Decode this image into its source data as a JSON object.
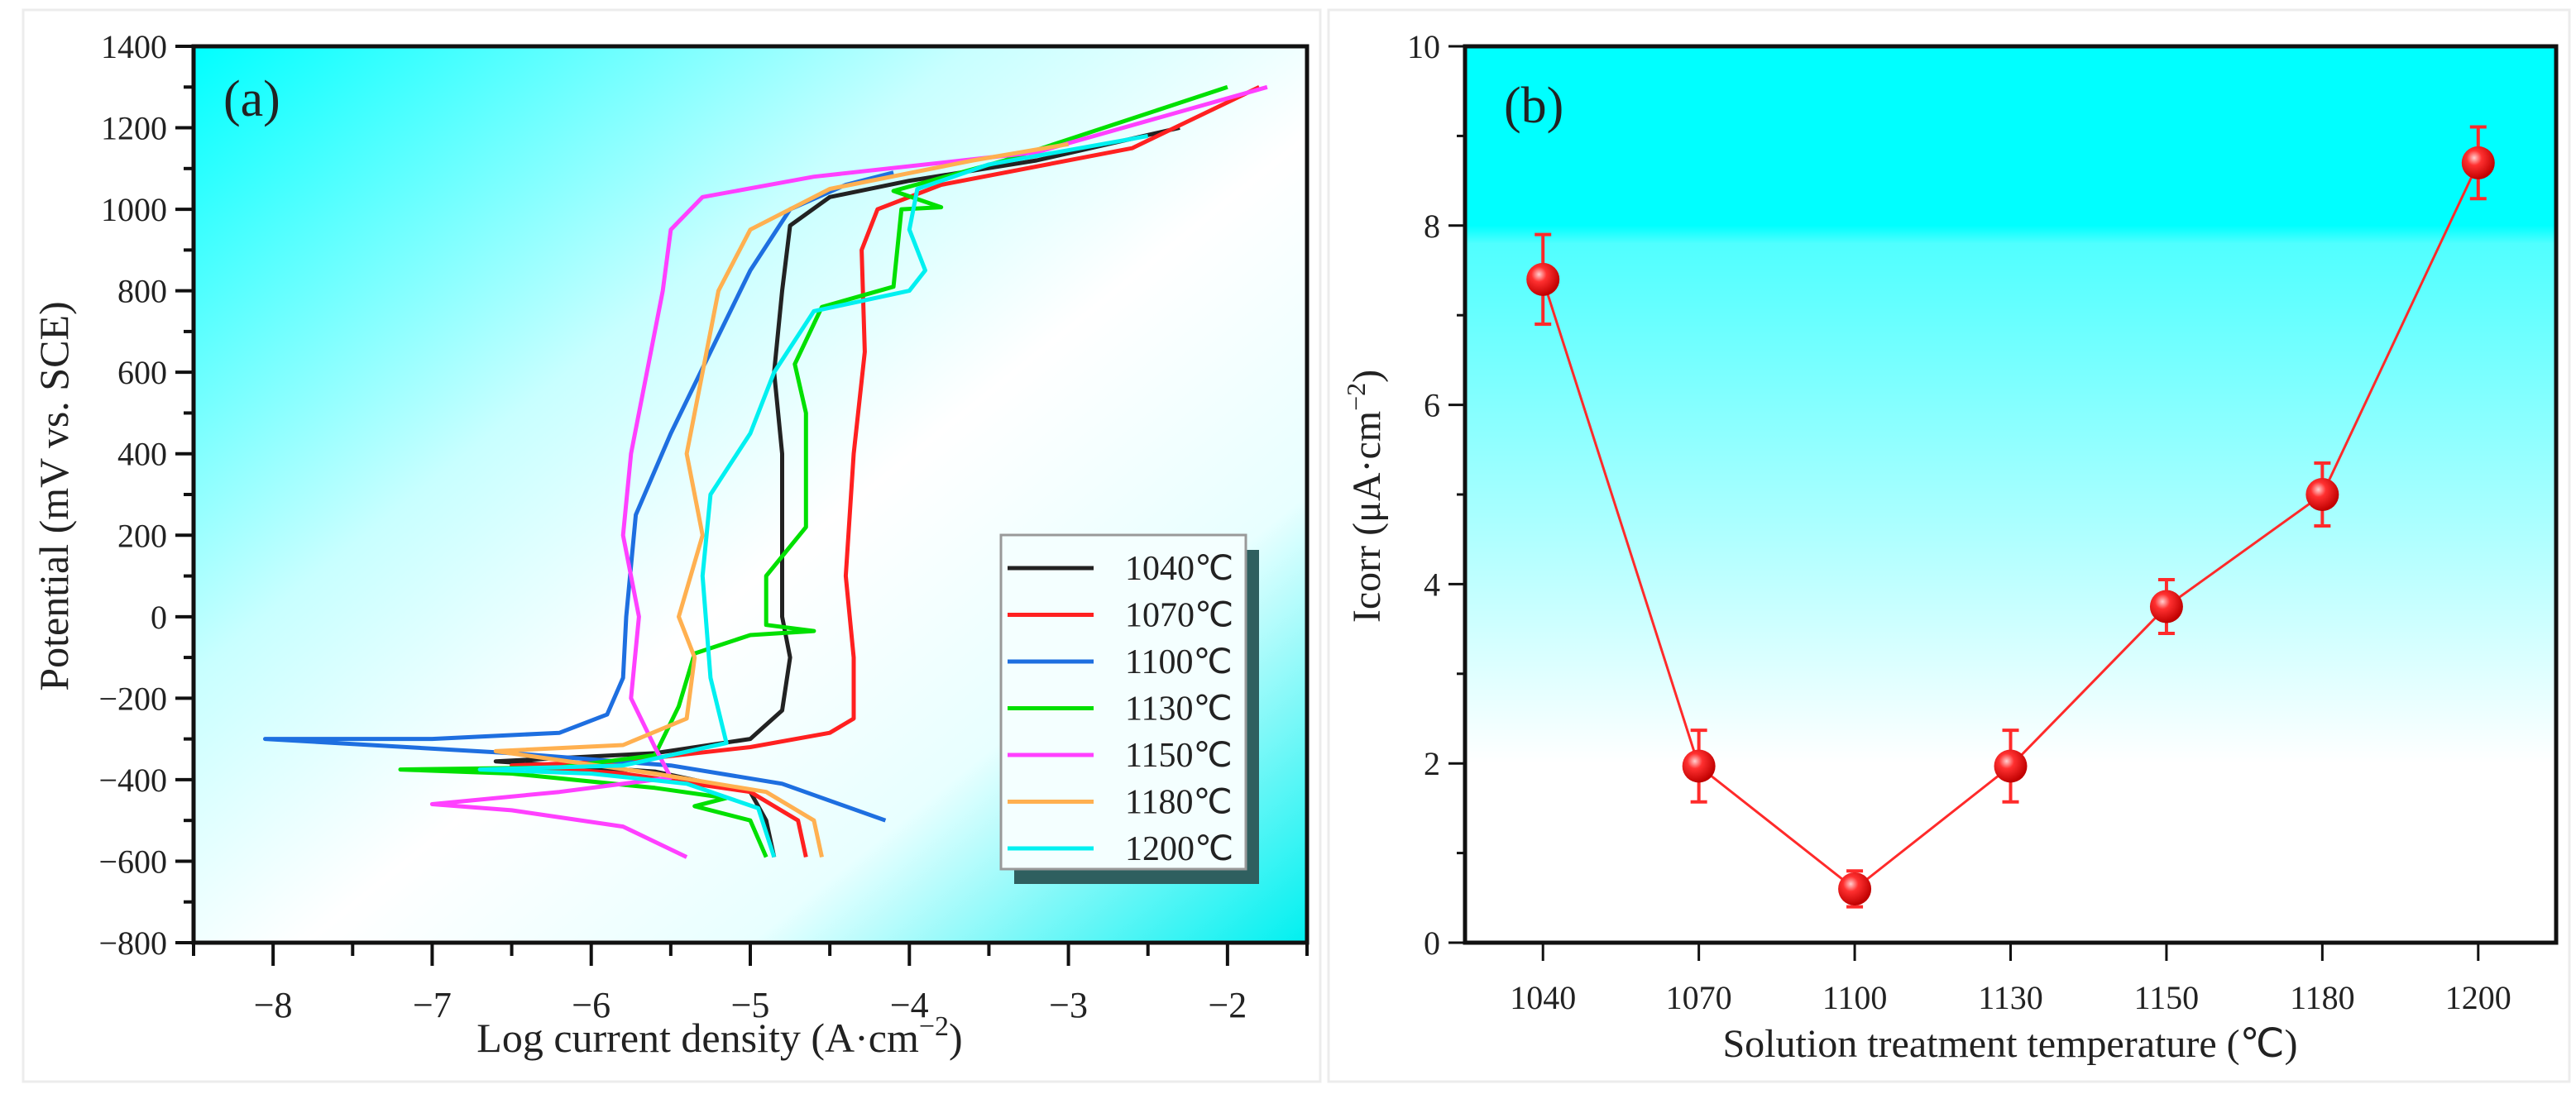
{
  "chart_data": [
    {
      "type": "line",
      "panel_label": "(a)",
      "xlabel": "Log current density (A·cm",
      "xlabel_sup": "−2",
      "xlabel_end": ")",
      "ylabel": "Potential (mV vs. SCE)",
      "xlim": [
        -8.5,
        -1.5
      ],
      "ylim": [
        -800,
        1400
      ],
      "xticks": [
        -8,
        -7,
        -6,
        -5,
        -4,
        -3,
        -2
      ],
      "yticks": [
        -800,
        -600,
        -400,
        -200,
        0,
        200,
        400,
        600,
        800,
        1000,
        1200,
        1400
      ],
      "legend_position": "bottom-right",
      "series": [
        {
          "name": "1040℃",
          "color": "#222222",
          "points": [
            [
              -4.85,
              -590
            ],
            [
              -4.9,
              -500
            ],
            [
              -5.0,
              -430
            ],
            [
              -5.6,
              -380
            ],
            [
              -6.6,
              -355
            ],
            [
              -5.6,
              -335
            ],
            [
              -5.0,
              -300
            ],
            [
              -4.8,
              -230
            ],
            [
              -4.75,
              -100
            ],
            [
              -4.8,
              0
            ],
            [
              -4.8,
              200
            ],
            [
              -4.8,
              400
            ],
            [
              -4.85,
              600
            ],
            [
              -4.8,
              800
            ],
            [
              -4.75,
              960
            ],
            [
              -4.5,
              1030
            ],
            [
              -4.0,
              1070
            ],
            [
              -3.2,
              1120
            ],
            [
              -2.3,
              1200
            ]
          ]
        },
        {
          "name": "1070℃",
          "color": "#ff2020",
          "points": [
            [
              -4.65,
              -590
            ],
            [
              -4.7,
              -500
            ],
            [
              -5.0,
              -430
            ],
            [
              -5.8,
              -385
            ],
            [
              -6.5,
              -365
            ],
            [
              -5.8,
              -355
            ],
            [
              -5.0,
              -320
            ],
            [
              -4.5,
              -285
            ],
            [
              -4.35,
              -250
            ],
            [
              -4.35,
              -100
            ],
            [
              -4.4,
              100
            ],
            [
              -4.35,
              400
            ],
            [
              -4.28,
              650
            ],
            [
              -4.3,
              900
            ],
            [
              -4.2,
              1000
            ],
            [
              -3.8,
              1060
            ],
            [
              -2.6,
              1150
            ],
            [
              -1.8,
              1300
            ]
          ]
        },
        {
          "name": "1100℃",
          "color": "#1e6fe0",
          "points": [
            [
              -4.15,
              -500
            ],
            [
              -4.8,
              -410
            ],
            [
              -5.5,
              -365
            ],
            [
              -6.5,
              -335
            ],
            [
              -8.05,
              -300
            ],
            [
              -7.0,
              -300
            ],
            [
              -6.2,
              -285
            ],
            [
              -5.9,
              -240
            ],
            [
              -5.8,
              -150
            ],
            [
              -5.78,
              0
            ],
            [
              -5.72,
              250
            ],
            [
              -5.5,
              450
            ],
            [
              -5.25,
              650
            ],
            [
              -5.0,
              850
            ],
            [
              -4.75,
              1000
            ],
            [
              -4.4,
              1060
            ],
            [
              -4.1,
              1090
            ]
          ]
        },
        {
          "name": "1130℃",
          "color": "#00e000",
          "points": [
            [
              -4.9,
              -590
            ],
            [
              -5.0,
              -500
            ],
            [
              -5.35,
              -465
            ],
            [
              -5.15,
              -445
            ],
            [
              -5.6,
              -420
            ],
            [
              -6.5,
              -385
            ],
            [
              -7.2,
              -375
            ],
            [
              -6.2,
              -370
            ],
            [
              -5.6,
              -340
            ],
            [
              -5.45,
              -220
            ],
            [
              -5.35,
              -90
            ],
            [
              -5.0,
              -45
            ],
            [
              -4.6,
              -35
            ],
            [
              -4.9,
              -20
            ],
            [
              -4.9,
              100
            ],
            [
              -4.65,
              220
            ],
            [
              -4.65,
              500
            ],
            [
              -4.72,
              620
            ],
            [
              -4.55,
              760
            ],
            [
              -4.1,
              810
            ],
            [
              -4.05,
              1000
            ],
            [
              -3.8,
              1005
            ],
            [
              -4.1,
              1045
            ],
            [
              -3.4,
              1120
            ],
            [
              -2.0,
              1300
            ]
          ]
        },
        {
          "name": "1150℃",
          "color": "#ff40ff",
          "points": [
            [
              -5.4,
              -590
            ],
            [
              -5.8,
              -515
            ],
            [
              -6.5,
              -475
            ],
            [
              -7.0,
              -460
            ],
            [
              -6.2,
              -430
            ],
            [
              -5.5,
              -395
            ],
            [
              -5.6,
              -320
            ],
            [
              -5.75,
              -200
            ],
            [
              -5.7,
              0
            ],
            [
              -5.8,
              200
            ],
            [
              -5.75,
              400
            ],
            [
              -5.65,
              600
            ],
            [
              -5.55,
              800
            ],
            [
              -5.5,
              950
            ],
            [
              -5.3,
              1030
            ],
            [
              -4.6,
              1080
            ],
            [
              -3.2,
              1140
            ],
            [
              -1.75,
              1300
            ]
          ]
        },
        {
          "name": "1180℃",
          "color": "#ffb050",
          "points": [
            [
              -4.55,
              -590
            ],
            [
              -4.6,
              -500
            ],
            [
              -4.9,
              -430
            ],
            [
              -5.6,
              -385
            ],
            [
              -6.6,
              -330
            ],
            [
              -5.8,
              -315
            ],
            [
              -5.4,
              -250
            ],
            [
              -5.35,
              -100
            ],
            [
              -5.45,
              0
            ],
            [
              -5.3,
              200
            ],
            [
              -5.4,
              400
            ],
            [
              -5.3,
              600
            ],
            [
              -5.2,
              800
            ],
            [
              -5.0,
              950
            ],
            [
              -4.5,
              1050
            ],
            [
              -3.6,
              1120
            ],
            [
              -3.0,
              1160
            ]
          ]
        },
        {
          "name": "1200℃",
          "color": "#00f0f0",
          "points": [
            [
              -4.85,
              -590
            ],
            [
              -4.95,
              -470
            ],
            [
              -5.4,
              -410
            ],
            [
              -6.0,
              -385
            ],
            [
              -6.7,
              -375
            ],
            [
              -5.8,
              -365
            ],
            [
              -5.15,
              -310
            ],
            [
              -5.25,
              -150
            ],
            [
              -5.3,
              100
            ],
            [
              -5.25,
              300
            ],
            [
              -5.0,
              450
            ],
            [
              -4.85,
              600
            ],
            [
              -4.6,
              750
            ],
            [
              -4.0,
              800
            ],
            [
              -3.9,
              850
            ],
            [
              -4.0,
              950
            ],
            [
              -3.95,
              1050
            ],
            [
              -3.5,
              1110
            ],
            [
              -2.5,
              1180
            ]
          ]
        }
      ]
    },
    {
      "type": "scatter",
      "panel_label": "(b)",
      "xlabel": "Solution treatment temperature (℃)",
      "ylabel": "Icorr (μA·cm",
      "ylabel_sup": "−2",
      "ylabel_end": ")",
      "categories": [
        "1040",
        "1070",
        "1100",
        "1130",
        "1150",
        "1180",
        "1200"
      ],
      "values": [
        7.4,
        1.97,
        0.6,
        1.97,
        3.75,
        5.0,
        8.7
      ],
      "errors": [
        0.5,
        0.4,
        0.2,
        0.4,
        0.3,
        0.35,
        0.4
      ],
      "ylim": [
        0,
        10
      ],
      "yticks": [
        0,
        2,
        4,
        6,
        8,
        10
      ],
      "color": "#ff2a2a"
    }
  ]
}
